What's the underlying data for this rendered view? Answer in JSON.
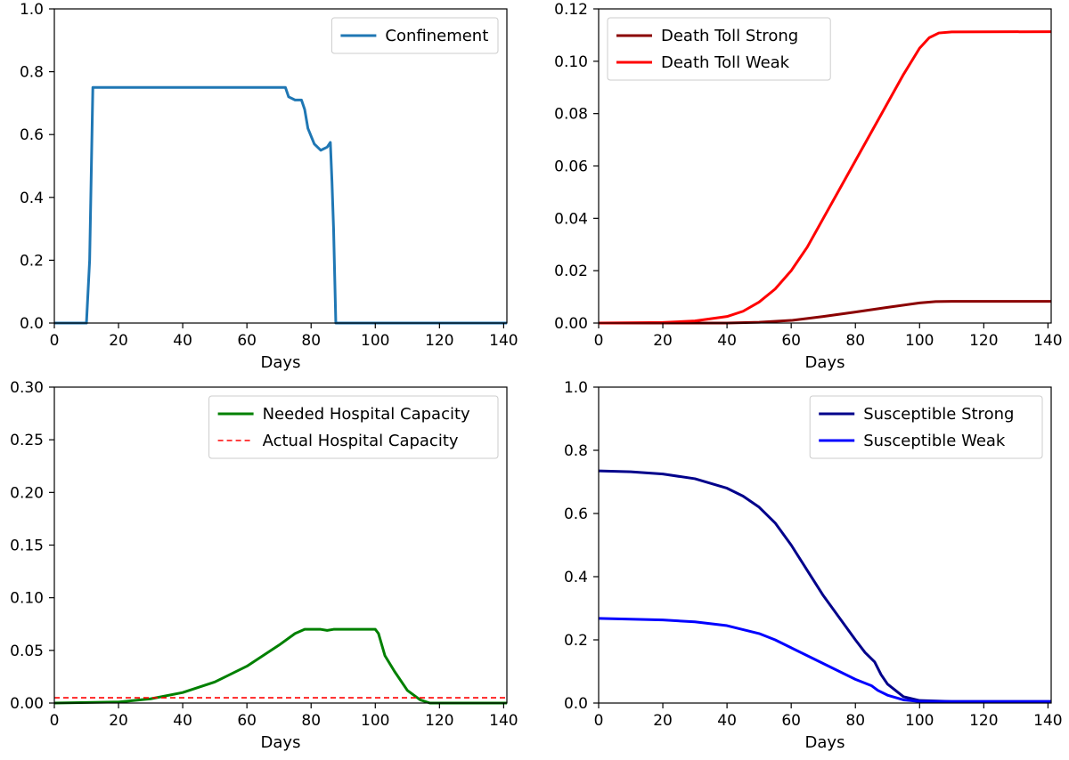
{
  "chart_data": [
    {
      "type": "line",
      "xlabel": "Days",
      "ylabel": "",
      "xlim": [
        0,
        141
      ],
      "ylim": [
        0,
        1.0
      ],
      "xticks": [
        0,
        20,
        40,
        60,
        80,
        100,
        120,
        140
      ],
      "yticks": [
        "0.0",
        "0.2",
        "0.4",
        "0.6",
        "0.8",
        "1.0"
      ],
      "grid": false,
      "legend": "top-right",
      "series": [
        {
          "name": "Confinement",
          "color": "#1f77b4",
          "style": "solid",
          "points": [
            [
              0,
              0
            ],
            [
              10,
              0
            ],
            [
              11,
              0.2
            ],
            [
              12,
              0.75
            ],
            [
              72,
              0.75
            ],
            [
              73,
              0.72
            ],
            [
              75,
              0.71
            ],
            [
              77,
              0.71
            ],
            [
              78,
              0.68
            ],
            [
              79,
              0.62
            ],
            [
              81,
              0.57
            ],
            [
              83,
              0.55
            ],
            [
              85,
              0.56
            ],
            [
              86,
              0.575
            ],
            [
              86.5,
              0.45
            ],
            [
              87,
              0.3
            ],
            [
              87.7,
              0
            ],
            [
              141,
              0
            ]
          ]
        }
      ]
    },
    {
      "type": "line",
      "xlabel": "Days",
      "ylabel": "",
      "xlim": [
        0,
        141
      ],
      "ylim": [
        0,
        0.12
      ],
      "xticks": [
        0,
        20,
        40,
        60,
        80,
        100,
        120,
        140
      ],
      "yticks": [
        "0.00",
        "0.02",
        "0.04",
        "0.06",
        "0.08",
        "0.10",
        "0.12"
      ],
      "grid": false,
      "legend": "top-left",
      "series": [
        {
          "name": "Death Toll Strong",
          "color": "#8b0000",
          "style": "solid",
          "points": [
            [
              0,
              0
            ],
            [
              40,
              0
            ],
            [
              50,
              0.0003
            ],
            [
              60,
              0.001
            ],
            [
              70,
              0.0025
            ],
            [
              80,
              0.0042
            ],
            [
              90,
              0.006
            ],
            [
              100,
              0.0077
            ],
            [
              105,
              0.0082
            ],
            [
              110,
              0.0083
            ],
            [
              141,
              0.0083
            ]
          ]
        },
        {
          "name": "Death Toll Weak",
          "color": "#ff0000",
          "style": "solid",
          "points": [
            [
              0,
              0
            ],
            [
              20,
              0.0002
            ],
            [
              30,
              0.0008
            ],
            [
              40,
              0.0025
            ],
            [
              45,
              0.0045
            ],
            [
              50,
              0.008
            ],
            [
              55,
              0.013
            ],
            [
              60,
              0.02
            ],
            [
              65,
              0.029
            ],
            [
              70,
              0.04
            ],
            [
              75,
              0.051
            ],
            [
              80,
              0.062
            ],
            [
              85,
              0.073
            ],
            [
              90,
              0.084
            ],
            [
              95,
              0.095
            ],
            [
              100,
              0.105
            ],
            [
              103,
              0.109
            ],
            [
              106,
              0.1108
            ],
            [
              110,
              0.1112
            ],
            [
              141,
              0.1113
            ]
          ]
        }
      ]
    },
    {
      "type": "line",
      "xlabel": "Days",
      "ylabel": "",
      "xlim": [
        0,
        141
      ],
      "ylim": [
        0,
        0.3
      ],
      "xticks": [
        0,
        20,
        40,
        60,
        80,
        100,
        120,
        140
      ],
      "yticks": [
        "0.00",
        "0.05",
        "0.10",
        "0.15",
        "0.20",
        "0.25",
        "0.30"
      ],
      "grid": false,
      "legend": "top-right",
      "series": [
        {
          "name": "Needed Hospital Capacity",
          "color": "#008000",
          "style": "solid",
          "points": [
            [
              0,
              0
            ],
            [
              20,
              0.001
            ],
            [
              30,
              0.004
            ],
            [
              40,
              0.01
            ],
            [
              50,
              0.02
            ],
            [
              60,
              0.035
            ],
            [
              70,
              0.055
            ],
            [
              75,
              0.066
            ],
            [
              78,
              0.07
            ],
            [
              83,
              0.07
            ],
            [
              85,
              0.069
            ],
            [
              87,
              0.07
            ],
            [
              100,
              0.07
            ],
            [
              101,
              0.066
            ],
            [
              103,
              0.045
            ],
            [
              106,
              0.03
            ],
            [
              110,
              0.012
            ],
            [
              114,
              0.003
            ],
            [
              117,
              0
            ],
            [
              141,
              0
            ]
          ]
        },
        {
          "name": "Actual Hospital Capacity",
          "color": "#ff0000",
          "style": "dashed",
          "points": [
            [
              0,
              0.005
            ],
            [
              141,
              0.005
            ]
          ]
        }
      ]
    },
    {
      "type": "line",
      "xlabel": "Days",
      "ylabel": "",
      "xlim": [
        0,
        141
      ],
      "ylim": [
        0,
        1.0
      ],
      "xticks": [
        0,
        20,
        40,
        60,
        80,
        100,
        120,
        140
      ],
      "yticks": [
        "0.0",
        "0.2",
        "0.4",
        "0.6",
        "0.8",
        "1.0"
      ],
      "grid": false,
      "legend": "top-right",
      "series": [
        {
          "name": "Susceptible Strong",
          "color": "#00008b",
          "style": "solid",
          "points": [
            [
              0,
              0.735
            ],
            [
              10,
              0.732
            ],
            [
              20,
              0.725
            ],
            [
              30,
              0.71
            ],
            [
              40,
              0.68
            ],
            [
              45,
              0.655
            ],
            [
              50,
              0.62
            ],
            [
              55,
              0.57
            ],
            [
              60,
              0.5
            ],
            [
              65,
              0.42
            ],
            [
              70,
              0.34
            ],
            [
              75,
              0.27
            ],
            [
              80,
              0.2
            ],
            [
              83,
              0.16
            ],
            [
              86,
              0.13
            ],
            [
              88,
              0.09
            ],
            [
              90,
              0.06
            ],
            [
              95,
              0.02
            ],
            [
              100,
              0.008
            ],
            [
              110,
              0.005
            ],
            [
              141,
              0.005
            ]
          ]
        },
        {
          "name": "Susceptible Weak",
          "color": "#0000ff",
          "style": "solid",
          "points": [
            [
              0,
              0.268
            ],
            [
              20,
              0.263
            ],
            [
              30,
              0.257
            ],
            [
              40,
              0.245
            ],
            [
              50,
              0.22
            ],
            [
              55,
              0.2
            ],
            [
              60,
              0.175
            ],
            [
              70,
              0.125
            ],
            [
              80,
              0.075
            ],
            [
              85,
              0.055
            ],
            [
              87,
              0.04
            ],
            [
              90,
              0.025
            ],
            [
              95,
              0.01
            ],
            [
              100,
              0.005
            ],
            [
              141,
              0.005
            ]
          ]
        }
      ]
    }
  ]
}
